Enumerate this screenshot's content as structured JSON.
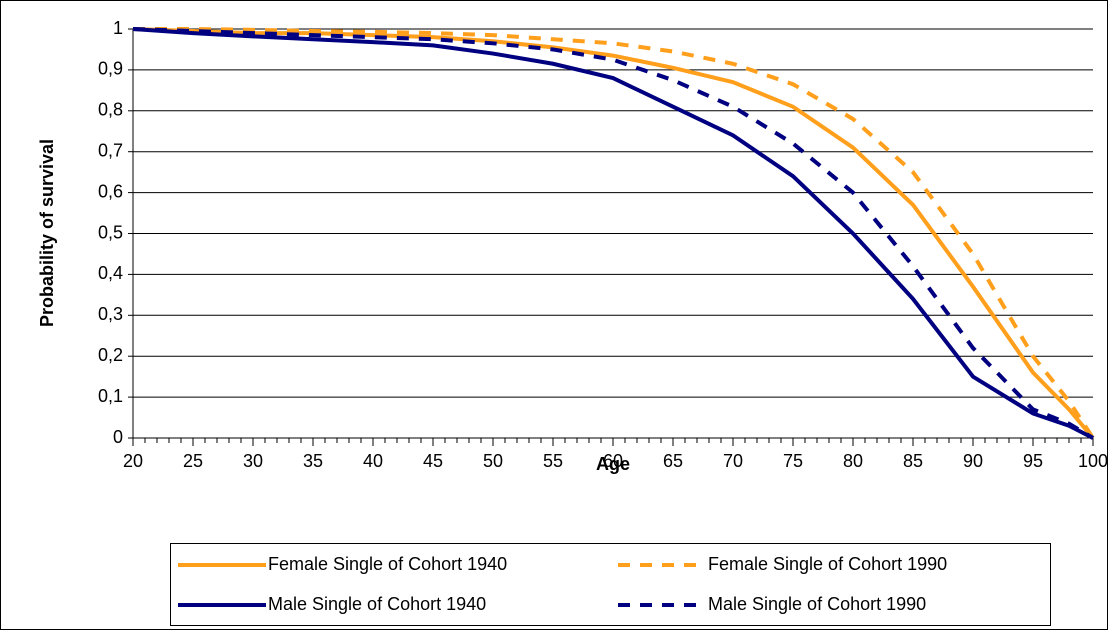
{
  "chart_data": {
    "type": "line",
    "xlabel": "Age",
    "ylabel": "Probability of survival",
    "x": [
      20,
      25,
      30,
      35,
      40,
      45,
      50,
      55,
      60,
      65,
      70,
      75,
      80,
      85,
      90,
      95,
      98,
      100
    ],
    "series": [
      {
        "name": "Female Single of Cohort 1940",
        "color": "#ff9f1c",
        "line_style": "solid",
        "values": [
          1,
          0.995,
          0.99,
          0.99,
          0.985,
          0.98,
          0.97,
          0.955,
          0.935,
          0.905,
          0.87,
          0.81,
          0.71,
          0.57,
          0.37,
          0.16,
          0.07,
          0
        ]
      },
      {
        "name": "Female Single of Cohort 1990",
        "color": "#ff9f1c",
        "line_style": "dashed",
        "values": [
          1,
          1,
          0.998,
          0.995,
          0.993,
          0.99,
          0.985,
          0.975,
          0.965,
          0.945,
          0.915,
          0.865,
          0.78,
          0.65,
          0.45,
          0.2,
          0.09,
          0
        ]
      },
      {
        "name": "Male Single of Cohort 1940",
        "color": "#000080",
        "line_style": "solid",
        "values": [
          1,
          0.99,
          0.982,
          0.975,
          0.968,
          0.96,
          0.94,
          0.915,
          0.88,
          0.81,
          0.74,
          0.64,
          0.5,
          0.34,
          0.15,
          0.06,
          0.03,
          0
        ]
      },
      {
        "name": "Male Single of Cohort 1990",
        "color": "#000080",
        "line_style": "dashed",
        "values": [
          1,
          0.995,
          0.99,
          0.985,
          0.98,
          0.975,
          0.965,
          0.95,
          0.925,
          0.875,
          0.81,
          0.72,
          0.6,
          0.42,
          0.22,
          0.07,
          0.035,
          0
        ]
      }
    ],
    "xlim": [
      20,
      100
    ],
    "xticks": [
      20,
      25,
      30,
      35,
      40,
      45,
      50,
      55,
      60,
      65,
      70,
      75,
      80,
      85,
      90,
      95,
      100
    ],
    "ylim": [
      0,
      1
    ],
    "yticks": [
      0,
      {
        "value": 0.1,
        "label": "0,1"
      },
      {
        "value": 0.2,
        "label": "0,2"
      },
      {
        "value": 0.3,
        "label": "0,3"
      },
      {
        "value": 0.4,
        "label": "0,4"
      },
      {
        "value": 0.5,
        "label": "0,5"
      },
      {
        "value": 0.6,
        "label": "0,6"
      },
      {
        "value": 0.7,
        "label": "0,7"
      },
      {
        "value": 0.8,
        "label": "0,8"
      },
      {
        "value": 0.9,
        "label": "0,9"
      },
      1
    ],
    "grid": true,
    "legend": "bottom"
  }
}
